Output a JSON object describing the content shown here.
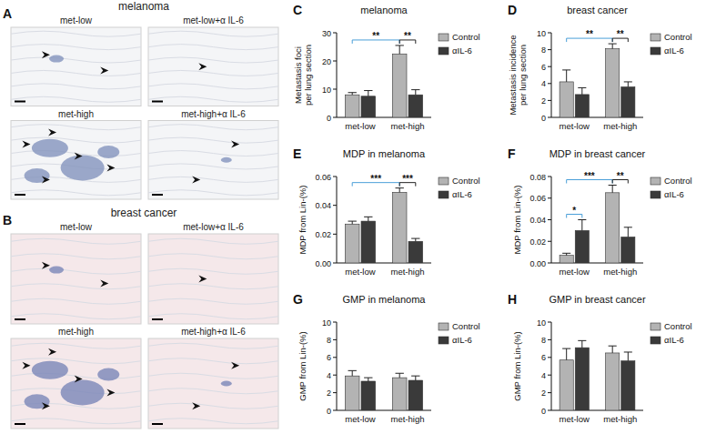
{
  "image_panels": [
    {
      "label": "A",
      "title": "melanoma",
      "images": [
        "met-low",
        "met-low+α IL-6",
        "met-high",
        "met-high+α IL-6"
      ]
    },
    {
      "label": "B",
      "title": "breast cancer",
      "images": [
        "met-low",
        "met-low+α IL-6",
        "met-high",
        "met-high+α IL-6"
      ]
    }
  ],
  "chart_data": [
    {
      "type": "bar",
      "panel": "C",
      "title": "melanoma",
      "ylabel": "Metastasis foci per lung section",
      "categories": [
        "met-low",
        "met-high"
      ],
      "ylim": [
        0,
        30
      ],
      "yticks": [
        0,
        10,
        20,
        30
      ],
      "legend": "right",
      "series": [
        {
          "name": "Control",
          "color": "#b3b3b3",
          "values": [
            8,
            22.5
          ],
          "errors": [
            0.8,
            3
          ]
        },
        {
          "name": "αIL-6",
          "color": "#3a3a3a",
          "values": [
            7.5,
            8
          ],
          "errors": [
            2,
            1.8
          ]
        }
      ],
      "annotations": [
        {
          "text": "**",
          "color": "#4a9fd8",
          "bars": [
            [
              0,
              0
            ],
            [
              0,
              1
            ]
          ]
        },
        {
          "text": "**",
          "color": "#222222",
          "bars": [
            [
              0,
              1
            ],
            [
              1,
              1
            ]
          ]
        }
      ]
    },
    {
      "type": "bar",
      "panel": "D",
      "title": "breast cancer",
      "ylabel": "Metastasis incidence per lung section",
      "categories": [
        "met-low",
        "met-high"
      ],
      "ylim": [
        0,
        10
      ],
      "yticks": [
        0,
        2,
        4,
        6,
        8,
        10
      ],
      "legend": "right",
      "series": [
        {
          "name": "Control",
          "color": "#b3b3b3",
          "values": [
            4.2,
            8.1
          ],
          "errors": [
            1.4,
            0.6
          ]
        },
        {
          "name": "αIL-6",
          "color": "#3a3a3a",
          "values": [
            2.7,
            3.6
          ],
          "errors": [
            0.8,
            0.6
          ]
        }
      ],
      "annotations": [
        {
          "text": "**",
          "color": "#4a9fd8",
          "bars": [
            [
              0,
              0
            ],
            [
              0,
              1
            ]
          ]
        },
        {
          "text": "**",
          "color": "#222222",
          "bars": [
            [
              0,
              1
            ],
            [
              1,
              1
            ]
          ]
        }
      ]
    },
    {
      "type": "bar",
      "panel": "E",
      "title": "MDP in melanoma",
      "ylabel": "MDP from Lin-(%)",
      "categories": [
        "met-low",
        "met-high"
      ],
      "ylim": [
        0,
        0.06
      ],
      "yticks": [
        {
          "value": 0,
          "label": "0.00"
        },
        0.02,
        0.04,
        0.06
      ],
      "legend": "right",
      "series": [
        {
          "name": "Control",
          "color": "#b3b3b3",
          "values": [
            0.027,
            0.049
          ],
          "errors": [
            0.002,
            0.003
          ]
        },
        {
          "name": "αIL-6",
          "color": "#3a3a3a",
          "values": [
            0.029,
            0.015
          ],
          "errors": [
            0.003,
            0.002
          ]
        }
      ],
      "annotations": [
        {
          "text": "***",
          "color": "#4a9fd8",
          "bars": [
            [
              0,
              0
            ],
            [
              0,
              1
            ]
          ]
        },
        {
          "text": "***",
          "color": "#222222",
          "bars": [
            [
              0,
              1
            ],
            [
              1,
              1
            ]
          ]
        }
      ]
    },
    {
      "type": "bar",
      "panel": "F",
      "title": "MDP in breast cancer",
      "ylabel": "MDP from Lin-(%)",
      "categories": [
        "met-low",
        "met-high"
      ],
      "ylim": [
        0,
        0.08
      ],
      "yticks": [
        {
          "value": 0,
          "label": "0.00"
        },
        0.02,
        0.04,
        0.06,
        0.08
      ],
      "legend": "right",
      "series": [
        {
          "name": "Control",
          "color": "#b3b3b3",
          "values": [
            0.007,
            0.065
          ],
          "errors": [
            0.002,
            0.007
          ]
        },
        {
          "name": "αIL-6",
          "color": "#3a3a3a",
          "values": [
            0.03,
            0.024
          ],
          "errors": [
            0.01,
            0.009
          ]
        }
      ],
      "annotations": [
        {
          "text": "*",
          "color": "#4a9fd8",
          "bars": [
            [
              0,
              0
            ],
            [
              1,
              0
            ]
          ]
        },
        {
          "text": "***",
          "color": "#4a9fd8",
          "bars": [
            [
              0,
              0
            ],
            [
              0,
              1
            ]
          ]
        },
        {
          "text": "**",
          "color": "#222222",
          "bars": [
            [
              0,
              1
            ],
            [
              1,
              1
            ]
          ]
        }
      ]
    },
    {
      "type": "bar",
      "panel": "G",
      "title": "GMP in melanoma",
      "ylabel": "GMP from Lin-(%)",
      "categories": [
        "met-low",
        "met-high"
      ],
      "ylim": [
        0,
        10
      ],
      "yticks": [
        0,
        2,
        4,
        6,
        8,
        10
      ],
      "legend": "right",
      "series": [
        {
          "name": "Control",
          "color": "#b3b3b3",
          "values": [
            3.9,
            3.7
          ],
          "errors": [
            0.6,
            0.5
          ]
        },
        {
          "name": "αIL-6",
          "color": "#3a3a3a",
          "values": [
            3.3,
            3.4
          ],
          "errors": [
            0.4,
            0.5
          ]
        }
      ],
      "annotations": []
    },
    {
      "type": "bar",
      "panel": "H",
      "title": "GMP in breast cancer",
      "ylabel": "GMP from Lin-(%)",
      "categories": [
        "met-low",
        "met-high"
      ],
      "ylim": [
        0,
        10
      ],
      "yticks": [
        0,
        2,
        4,
        6,
        8,
        10
      ],
      "legend": "right",
      "series": [
        {
          "name": "Control",
          "color": "#b3b3b3",
          "values": [
            5.7,
            6.5
          ],
          "errors": [
            1.3,
            0.8
          ]
        },
        {
          "name": "αIL-6",
          "color": "#3a3a3a",
          "values": [
            7.1,
            5.6
          ],
          "errors": [
            0.8,
            1
          ]
        }
      ],
      "annotations": []
    }
  ]
}
